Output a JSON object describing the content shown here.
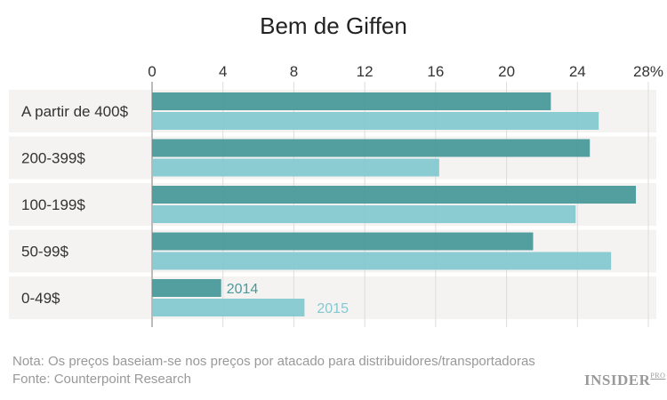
{
  "chart_data": {
    "type": "bar",
    "orientation": "horizontal",
    "title": "Bem de Giffen",
    "categories": [
      "A partir de 400$",
      "200-399$",
      "100-199$",
      "50-99$",
      "0-49$"
    ],
    "series": [
      {
        "name": "2014",
        "color": "#4a9a9a",
        "values": [
          22.5,
          24.7,
          27.3,
          21.5,
          3.9
        ]
      },
      {
        "name": "2015",
        "color": "#85c8d0",
        "values": [
          25.2,
          16.2,
          23.9,
          25.9,
          8.6
        ]
      }
    ],
    "xlim": [
      0,
      28
    ],
    "xticks": [
      0,
      4,
      8,
      12,
      16,
      20,
      24,
      28
    ],
    "xtick_labels": [
      "0",
      "4",
      "8",
      "12",
      "16",
      "20",
      "24",
      "28%"
    ],
    "grid": true,
    "legend": "inline labels on last category"
  },
  "footer": {
    "note": "Nota: Os preços baseiam-se nos preços por atacado para distribuidores/transportadoras",
    "source": "Fonte: Counterpoint Research",
    "logo_main": "INSIDER",
    "logo_sub": "PRO"
  }
}
